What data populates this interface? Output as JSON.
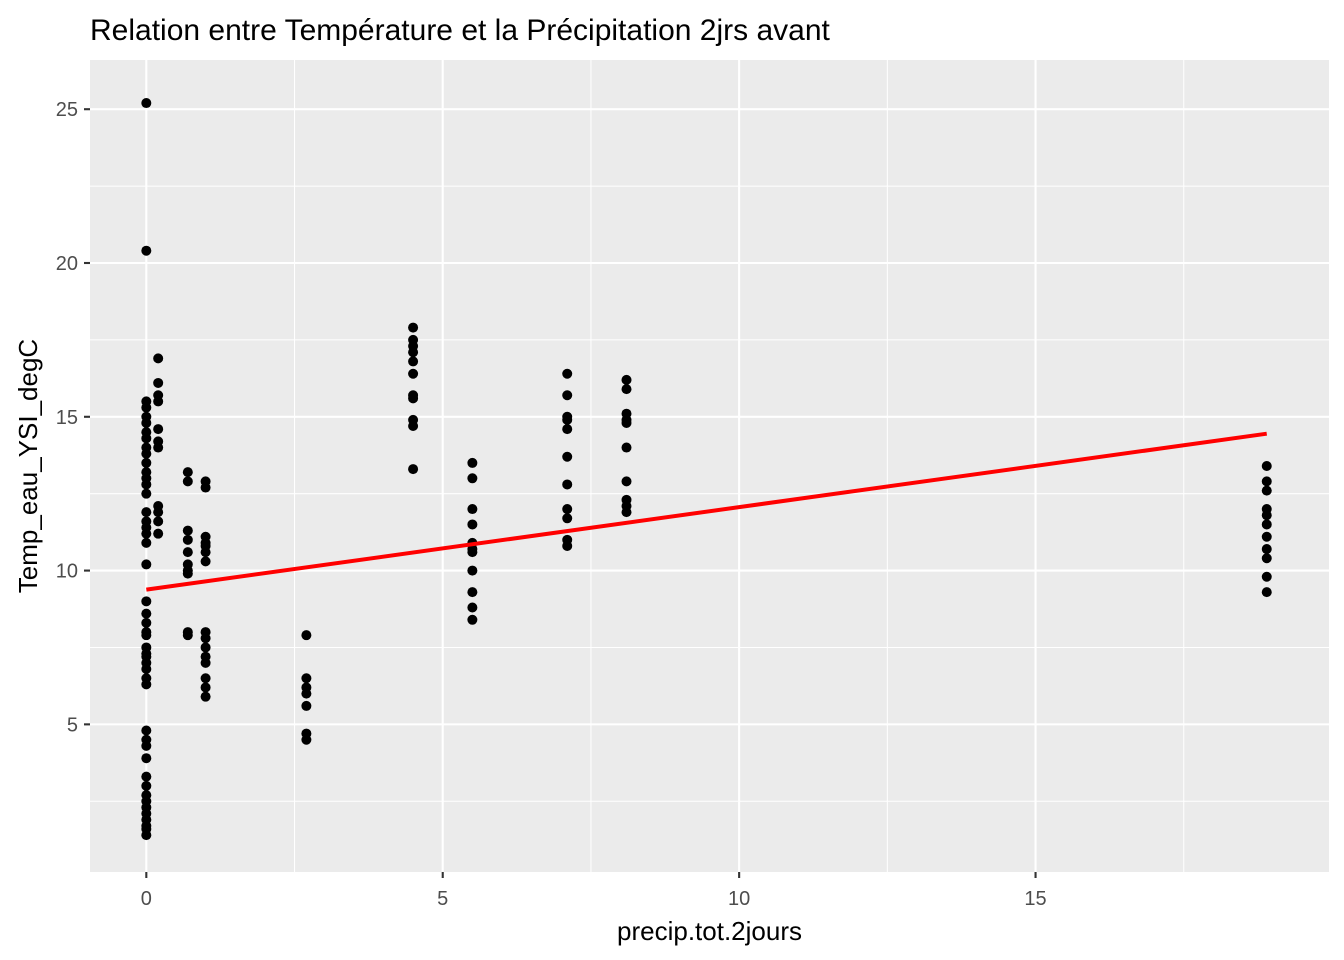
{
  "chart_data": {
    "type": "scatter",
    "title": "Relation entre Température et la Précipitation 2jrs avant",
    "xlabel": "precip.tot.2jours",
    "ylabel": "Temp_eau_YSI_degC",
    "xlim": [
      -0.95,
      19.95
    ],
    "ylim": [
      0.2,
      26.6
    ],
    "x_ticks": [
      0,
      5,
      10,
      15
    ],
    "x_tick_labels": [
      "0",
      "5",
      "10",
      "15"
    ],
    "y_ticks": [
      5,
      10,
      15,
      20,
      25
    ],
    "y_tick_labels": [
      "5",
      "10",
      "15",
      "20",
      "25"
    ],
    "grid": true,
    "series": [
      {
        "kind": "points",
        "color": "#000000",
        "points": [
          [
            0,
            25.2
          ],
          [
            0,
            20.4
          ],
          [
            0,
            15.5
          ],
          [
            0,
            15.3
          ],
          [
            0,
            15.0
          ],
          [
            0,
            14.8
          ],
          [
            0,
            14.5
          ],
          [
            0,
            14.3
          ],
          [
            0,
            14.0
          ],
          [
            0,
            13.8
          ],
          [
            0,
            13.5
          ],
          [
            0,
            13.2
          ],
          [
            0,
            13.0
          ],
          [
            0,
            12.8
          ],
          [
            0,
            12.5
          ],
          [
            0,
            11.9
          ],
          [
            0,
            11.6
          ],
          [
            0,
            11.4
          ],
          [
            0,
            11.2
          ],
          [
            0,
            10.9
          ],
          [
            0,
            10.2
          ],
          [
            0,
            9.0
          ],
          [
            0,
            8.6
          ],
          [
            0,
            8.3
          ],
          [
            0,
            8.0
          ],
          [
            0,
            7.9
          ],
          [
            0,
            7.5
          ],
          [
            0,
            7.3
          ],
          [
            0,
            7.2
          ],
          [
            0,
            7.0
          ],
          [
            0,
            6.8
          ],
          [
            0,
            6.5
          ],
          [
            0,
            6.3
          ],
          [
            0,
            4.8
          ],
          [
            0,
            4.5
          ],
          [
            0,
            4.3
          ],
          [
            0,
            3.9
          ],
          [
            0,
            3.3
          ],
          [
            0,
            3.0
          ],
          [
            0,
            2.7
          ],
          [
            0,
            2.5
          ],
          [
            0,
            2.3
          ],
          [
            0,
            2.1
          ],
          [
            0,
            1.9
          ],
          [
            0,
            1.7
          ],
          [
            0,
            1.6
          ],
          [
            0,
            1.4
          ],
          [
            0.2,
            16.9
          ],
          [
            0.2,
            16.1
          ],
          [
            0.2,
            15.7
          ],
          [
            0.2,
            15.5
          ],
          [
            0.2,
            14.6
          ],
          [
            0.2,
            14.2
          ],
          [
            0.2,
            14.0
          ],
          [
            0.2,
            12.1
          ],
          [
            0.2,
            11.9
          ],
          [
            0.2,
            11.6
          ],
          [
            0.2,
            11.2
          ],
          [
            0.7,
            13.2
          ],
          [
            0.7,
            12.9
          ],
          [
            0.7,
            11.3
          ],
          [
            0.7,
            11.0
          ],
          [
            0.7,
            10.6
          ],
          [
            0.7,
            10.2
          ],
          [
            0.7,
            10.0
          ],
          [
            0.7,
            9.9
          ],
          [
            0.7,
            8.0
          ],
          [
            0.7,
            7.9
          ],
          [
            1.0,
            12.9
          ],
          [
            1.0,
            12.7
          ],
          [
            1.0,
            11.1
          ],
          [
            1.0,
            10.9
          ],
          [
            1.0,
            10.8
          ],
          [
            1.0,
            10.6
          ],
          [
            1.0,
            10.3
          ],
          [
            1.0,
            8.0
          ],
          [
            1.0,
            7.8
          ],
          [
            1.0,
            7.5
          ],
          [
            1.0,
            7.2
          ],
          [
            1.0,
            7.0
          ],
          [
            1.0,
            6.5
          ],
          [
            1.0,
            6.2
          ],
          [
            1.0,
            5.9
          ],
          [
            2.7,
            7.9
          ],
          [
            2.7,
            6.5
          ],
          [
            2.7,
            6.2
          ],
          [
            2.7,
            6.0
          ],
          [
            2.7,
            5.6
          ],
          [
            2.7,
            4.7
          ],
          [
            2.7,
            4.5
          ],
          [
            4.5,
            17.9
          ],
          [
            4.5,
            17.5
          ],
          [
            4.5,
            17.3
          ],
          [
            4.5,
            17.1
          ],
          [
            4.5,
            16.8
          ],
          [
            4.5,
            16.4
          ],
          [
            4.5,
            15.7
          ],
          [
            4.5,
            15.6
          ],
          [
            4.5,
            14.9
          ],
          [
            4.5,
            14.7
          ],
          [
            4.5,
            13.3
          ],
          [
            5.5,
            13.5
          ],
          [
            5.5,
            13.0
          ],
          [
            5.5,
            12.0
          ],
          [
            5.5,
            11.5
          ],
          [
            5.5,
            10.9
          ],
          [
            5.5,
            10.7
          ],
          [
            5.5,
            10.6
          ],
          [
            5.5,
            10.0
          ],
          [
            5.5,
            9.3
          ],
          [
            5.5,
            8.8
          ],
          [
            5.5,
            8.4
          ],
          [
            7.1,
            16.4
          ],
          [
            7.1,
            15.7
          ],
          [
            7.1,
            15.0
          ],
          [
            7.1,
            14.9
          ],
          [
            7.1,
            14.6
          ],
          [
            7.1,
            13.7
          ],
          [
            7.1,
            12.8
          ],
          [
            7.1,
            12.0
          ],
          [
            7.1,
            11.7
          ],
          [
            7.1,
            11.0
          ],
          [
            7.1,
            10.8
          ],
          [
            8.1,
            16.2
          ],
          [
            8.1,
            15.9
          ],
          [
            8.1,
            15.1
          ],
          [
            8.1,
            14.9
          ],
          [
            8.1,
            14.8
          ],
          [
            8.1,
            14.0
          ],
          [
            8.1,
            12.9
          ],
          [
            8.1,
            12.3
          ],
          [
            8.1,
            12.1
          ],
          [
            8.1,
            11.9
          ],
          [
            18.9,
            13.4
          ],
          [
            18.9,
            12.9
          ],
          [
            18.9,
            12.6
          ],
          [
            18.9,
            12.0
          ],
          [
            18.9,
            11.8
          ],
          [
            18.9,
            11.5
          ],
          [
            18.9,
            11.1
          ],
          [
            18.9,
            10.7
          ],
          [
            18.9,
            10.4
          ],
          [
            18.9,
            9.8
          ],
          [
            18.9,
            9.3
          ]
        ]
      },
      {
        "kind": "regression-line",
        "color": "#ff0000",
        "x": [
          0,
          18.9
        ],
        "y": [
          9.38,
          14.45
        ]
      }
    ]
  }
}
